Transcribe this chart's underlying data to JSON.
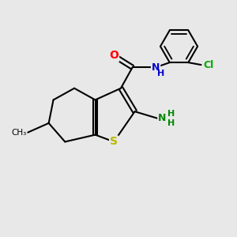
{
  "bg_color": "#e8e8e8",
  "bond_color": "#000000",
  "bond_width": 1.5,
  "atom_colors": {
    "S": "#b8b800",
    "O": "#ff0000",
    "N_amide": "#0000cc",
    "N_amino": "#008800",
    "Cl": "#00aa00",
    "C": "#000000"
  },
  "canvas_xlim": [
    0,
    10
  ],
  "canvas_ylim": [
    0,
    10
  ]
}
